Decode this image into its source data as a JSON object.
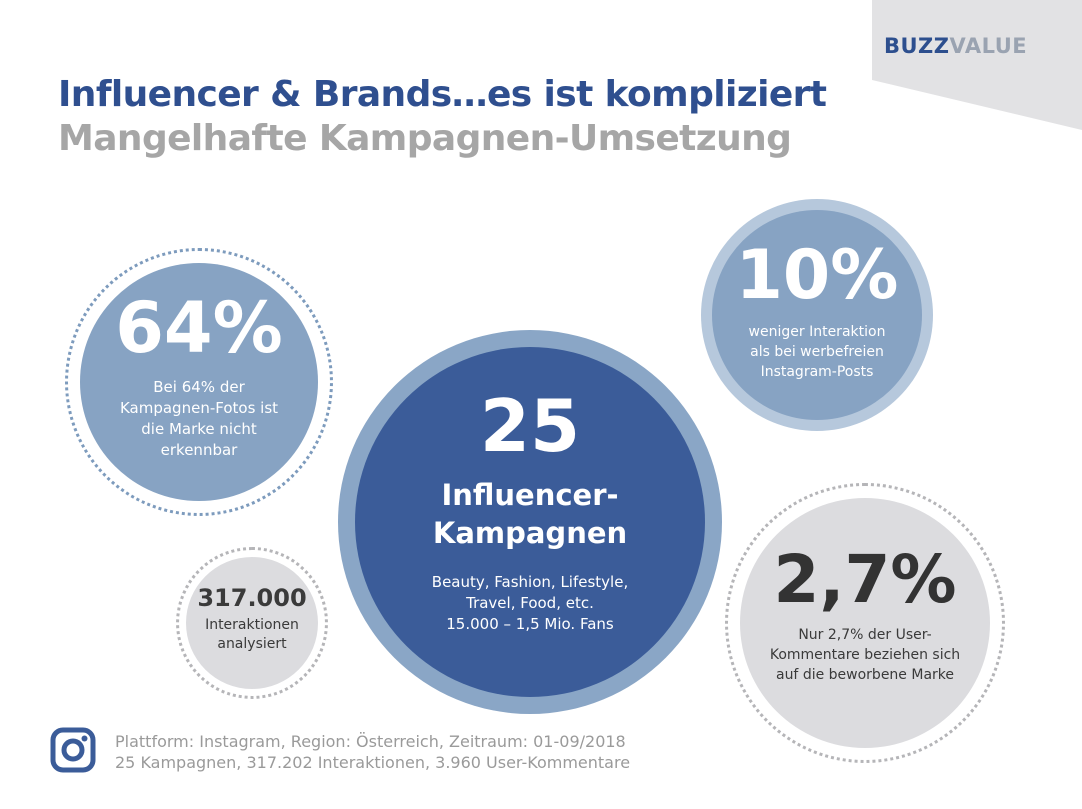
{
  "brand": {
    "part1": "BUZZ",
    "part2": "VALUE"
  },
  "header": {
    "title": "Influencer & Brands…es ist kompliziert",
    "subtitle": "Mangelhafte Kampagnen-Umsetzung"
  },
  "stats": {
    "recognition": {
      "value": "64%",
      "description": "Bei 64% der Kampagnen-Fotos ist die Marke nicht erkennbar"
    },
    "interaction": {
      "value": "10%",
      "description_line1": "weniger Interaktion",
      "description_line2": "als bei werbefreien",
      "description_line3": "Instagram-Posts"
    },
    "campaigns": {
      "value": "25",
      "label_line1": "Influencer-",
      "label_line2": "Kampagnen",
      "description_line1": "Beauty, Fashion, Lifestyle,",
      "description_line2": "Travel, Food, etc.",
      "description_line3": "15.000 – 1,5 Mio. Fans"
    },
    "analyzed": {
      "value": "317.000",
      "description_line1": "Interaktionen",
      "description_line2": "analysiert"
    },
    "comments": {
      "value": "2,7%",
      "description_line1": "Nur 2,7% der User-",
      "description_line2": "Kommentare beziehen sich",
      "description_line3": "auf die beworbene Marke"
    }
  },
  "footer": {
    "icon": "instagram-icon",
    "line1": "Plattform: Instagram, Region: Österreich, Zeitraum: 01-09/2018",
    "line2": "25 Kampagnen, 317.202 Interaktionen, 3.960 User-Kommentare"
  },
  "colors": {
    "primary_blue": "#3b5c99",
    "light_blue": "#87a3c3",
    "gray": "#dcdcdf",
    "title_blue": "#2f4f8f",
    "subtitle_gray": "#a6a6a6"
  }
}
